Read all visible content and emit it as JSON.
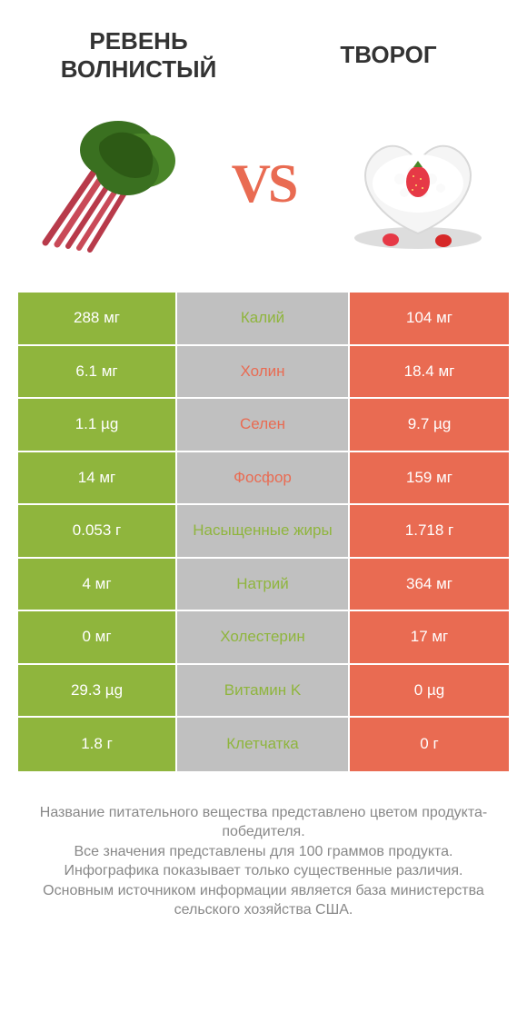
{
  "colors": {
    "green": "#8fb53d",
    "gray": "#c0c0c0",
    "orange": "#e96b52",
    "header_text": "#333333",
    "footer_text": "#888888",
    "vs_text": "#e96b52",
    "white": "#ffffff"
  },
  "header": {
    "left_title": "РЕВЕНЬ ВОЛНИСТЫЙ",
    "right_title": "ТВОРОГ",
    "vs_label": "VS"
  },
  "table": {
    "rows": [
      {
        "left": "288 мг",
        "middle": "Калий",
        "right": "104 мг",
        "winner": "left"
      },
      {
        "left": "6.1 мг",
        "middle": "Холин",
        "right": "18.4 мг",
        "winner": "right"
      },
      {
        "left": "1.1 µg",
        "middle": "Селен",
        "right": "9.7 µg",
        "winner": "right"
      },
      {
        "left": "14 мг",
        "middle": "Фосфор",
        "right": "159 мг",
        "winner": "right"
      },
      {
        "left": "0.053 г",
        "middle": "Насыщенные жиры",
        "right": "1.718 г",
        "winner": "left"
      },
      {
        "left": "4 мг",
        "middle": "Натрий",
        "right": "364 мг",
        "winner": "left"
      },
      {
        "left": "0 мг",
        "middle": "Холестерин",
        "right": "17 мг",
        "winner": "left"
      },
      {
        "left": "29.3 µg",
        "middle": "Витамин K",
        "right": "0 µg",
        "winner": "left"
      },
      {
        "left": "1.8 г",
        "middle": "Клетчатка",
        "right": "0 г",
        "winner": "left"
      }
    ]
  },
  "footer": {
    "line1": "Название питательного вещества представлено цветом продукта-победителя.",
    "line2": "Все значения представлены для 100 граммов продукта.",
    "line3": "Инфографика показывает только существенные различия.",
    "line4": "Основным источником информации является база министерства сельского хозяйства США."
  }
}
